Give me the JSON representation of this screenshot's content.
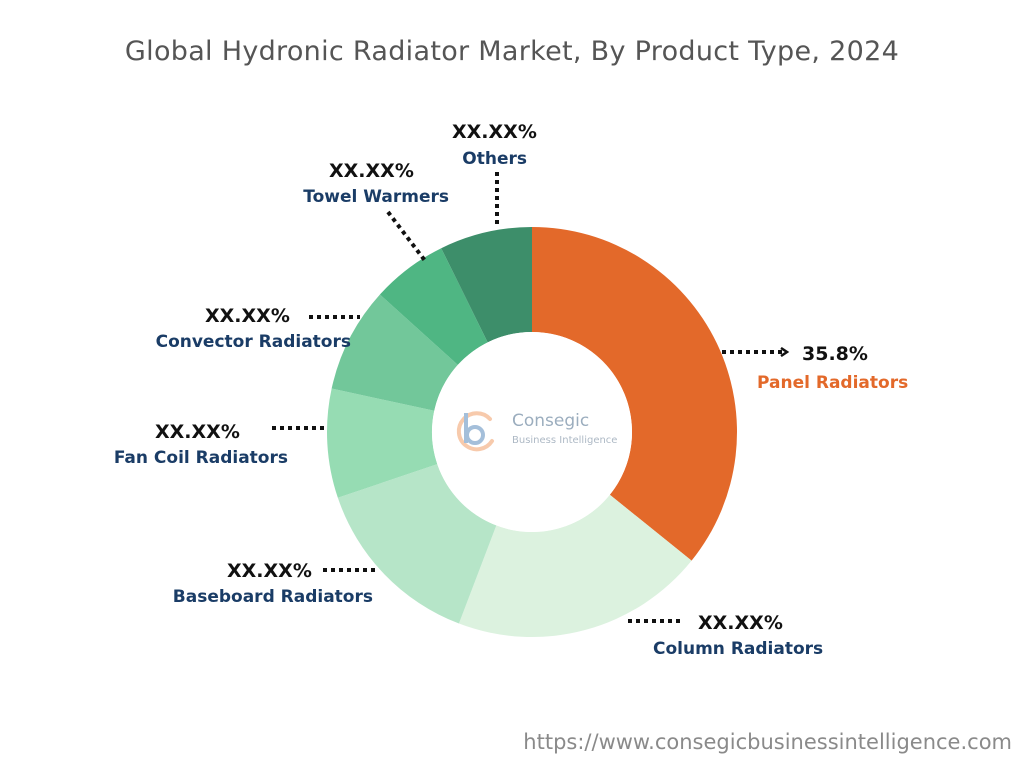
{
  "title": "Global Hydronic Radiator Market, By Product Type, 2024",
  "website": "https://www.consegicbusinessintelligence.com",
  "logo": {
    "name": "Consegic",
    "tagline": "Business Intelligence"
  },
  "chart_data": {
    "type": "pie",
    "variant": "donut",
    "title": "Global Hydronic Radiator Market, By Product Type, 2024",
    "categories": [
      "Panel Radiators",
      "Column Radiators",
      "Baseboard Radiators",
      "Fan Coil Radiators",
      "Convector Radiators",
      "Towel Warmers",
      "Others"
    ],
    "values": [
      35.8,
      20.0,
      14.0,
      8.6,
      8.3,
      6.0,
      7.3
    ],
    "value_labels": [
      "35.8%",
      "XX.XX%",
      "XX.XX%",
      "XX.XX%",
      "XX.XX%",
      "XX.XX%",
      "XX.XX%"
    ],
    "colors": [
      "#e3692a",
      "#dcf2df",
      "#b6e5c8",
      "#96dcb3",
      "#72c79a",
      "#4fb683",
      "#3d8e6a"
    ],
    "label_colors": [
      "#e3692a",
      "#1a3c66",
      "#1a3c66",
      "#1a3c66",
      "#1a3c66",
      "#1a3c66",
      "#1a3c66"
    ],
    "start_angle_deg": 0,
    "direction": "clockwise"
  }
}
